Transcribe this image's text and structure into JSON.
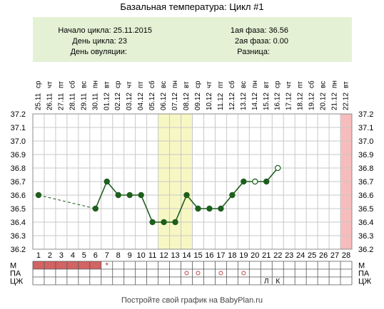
{
  "chart_data": {
    "type": "line",
    "title": "Базальная температура: Цикл #1",
    "info": {
      "cycle_start_label": "Начало цикла:",
      "cycle_start_value": "25.11.2015",
      "cycle_day_label": "День цикла:",
      "cycle_day_value": "23",
      "ovulation_day_label": "День овуляции:",
      "ovulation_day_value": "",
      "phase1_label": "1ая фаза:",
      "phase1_value": "36.56",
      "phase2_label": "2ая фаза:",
      "phase2_value": "0.00",
      "difference_label": "Разница:",
      "difference_value": ""
    },
    "days": [
      1,
      2,
      3,
      4,
      5,
      6,
      7,
      8,
      9,
      10,
      11,
      12,
      13,
      14,
      15,
      16,
      17,
      18,
      19,
      20,
      21,
      22,
      23,
      24,
      25,
      26,
      27,
      28
    ],
    "weekdays": [
      "ср",
      "чт",
      "пт",
      "сб",
      "вс",
      "пн",
      "вт",
      "ср",
      "чт",
      "пт",
      "сб",
      "вс",
      "пн",
      "вт",
      "ср",
      "чт",
      "пт",
      "сб",
      "вс",
      "пн",
      "вт",
      "ср",
      "чт",
      "пт",
      "сб",
      "вс",
      "пн",
      "вт"
    ],
    "dates": [
      "25.11",
      "26.11",
      "27.11",
      "28.11",
      "29.11",
      "30.11",
      "01.12",
      "02.12",
      "03.12",
      "04.12",
      "05.12",
      "06.12",
      "07.12",
      "08.12",
      "09.12",
      "10.12",
      "11.12",
      "12.12",
      "13.12",
      "14.12",
      "15.12",
      "16.12",
      "17.12",
      "18.12",
      "19.12",
      "20.12",
      "21.12",
      "22.12"
    ],
    "temperatures": [
      36.6,
      null,
      null,
      null,
      null,
      36.5,
      36.7,
      36.6,
      36.6,
      36.6,
      36.4,
      36.4,
      36.4,
      36.6,
      36.5,
      36.5,
      36.5,
      36.6,
      36.7,
      36.7,
      36.7,
      36.8,
      null,
      null,
      null,
      null,
      null,
      null
    ],
    "open_markers": [
      20,
      22
    ],
    "ylim": [
      36.2,
      37.2
    ],
    "yticks": [
      "36.2",
      "36.3",
      "36.4",
      "36.5",
      "36.6",
      "36.7",
      "36.8",
      "36.9",
      "37.0",
      "37.1",
      "37.2"
    ],
    "highlight_days": [
      12,
      13,
      14
    ],
    "end_day_highlight": 28,
    "rows": {
      "M": {
        "label": "М",
        "filled_days": [
          1,
          2,
          3,
          4,
          5,
          6
        ],
        "star_day": 7
      },
      "PA": {
        "label": "ПА",
        "circle_days": [
          14,
          15,
          17,
          19
        ]
      },
      "CZH": {
        "label": "ЦЖ",
        "marks": [
          {
            "day": 21,
            "text": "Л"
          },
          {
            "day": 22,
            "text": "К"
          }
        ]
      }
    },
    "footer": "Постройте свой график на BabyPlan.ru",
    "colors": {
      "line": "#1e5e1e",
      "grid": "#c8c8c8",
      "info_bg": "#e4f1d5",
      "highlight": "#f7f7c3",
      "end_highlight": "#f7bcbc",
      "menses": "#d26464",
      "star": "#c04040",
      "circle": "#c04040"
    }
  }
}
